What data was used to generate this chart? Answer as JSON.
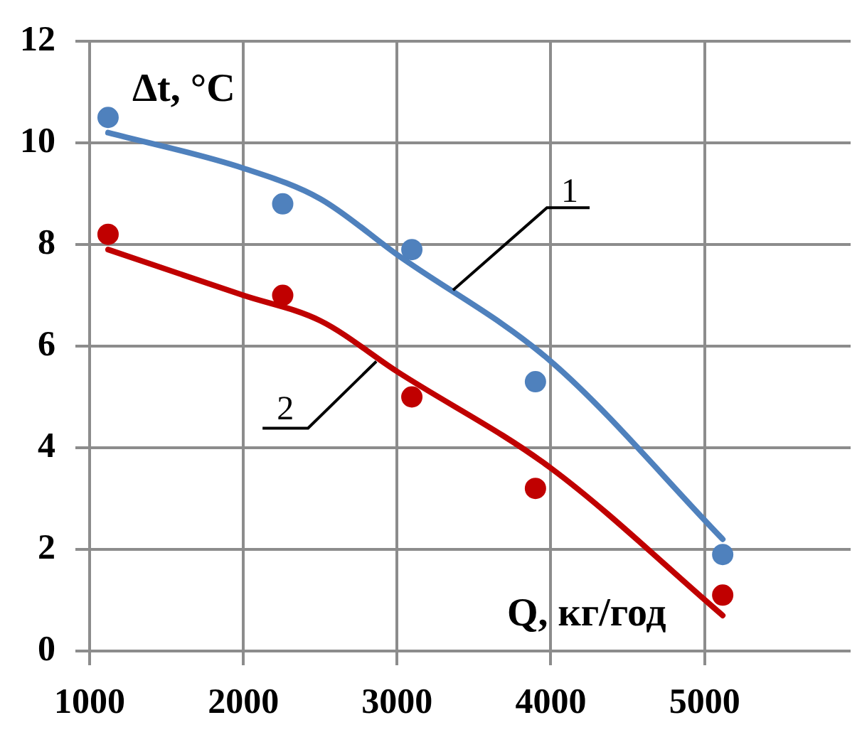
{
  "chart_data": {
    "type": "scatter",
    "xlabel": "Q, кг/год",
    "ylabel": "Δt, °C",
    "xlim": [
      1000,
      5950
    ],
    "xticks": [
      1000,
      2000,
      3000,
      4000,
      5000
    ],
    "ylim": [
      0,
      12
    ],
    "yticks": [
      0,
      2,
      4,
      6,
      8,
      10,
      12
    ],
    "grid": true,
    "legend": false,
    "series": [
      {
        "color": "#4f81bd",
        "marker": "circle",
        "x": [
          1120,
          2256,
          3096,
          3900,
          5118
        ],
        "values": [
          10.5,
          8.8,
          7.9,
          5.3,
          1.9
        ]
      },
      {
        "color": "#c00000",
        "marker": "circle",
        "x": [
          1120,
          2256,
          3096,
          3900,
          5118
        ],
        "values": [
          8.2,
          7.0,
          5.0,
          3.2,
          1.1
        ]
      },
      {
        "type": "line",
        "color": "#4f81bd",
        "marker": "none",
        "x": [
          1120,
          2000,
          2500,
          3000,
          4000,
          5118
        ],
        "values": [
          10.2,
          9.5,
          8.9,
          7.8,
          5.7,
          2.2
        ]
      },
      {
        "type": "line",
        "color": "#c00000",
        "marker": "none",
        "x": [
          1120,
          2000,
          2500,
          3000,
          4000,
          5118
        ],
        "values": [
          7.9,
          7.0,
          6.5,
          5.5,
          3.6,
          0.7
        ]
      }
    ],
    "annotations": [
      {
        "text": "1",
        "x": 3364,
        "y": 7.1
      },
      {
        "text": "2",
        "x": 2865,
        "y": 5.7
      }
    ]
  }
}
